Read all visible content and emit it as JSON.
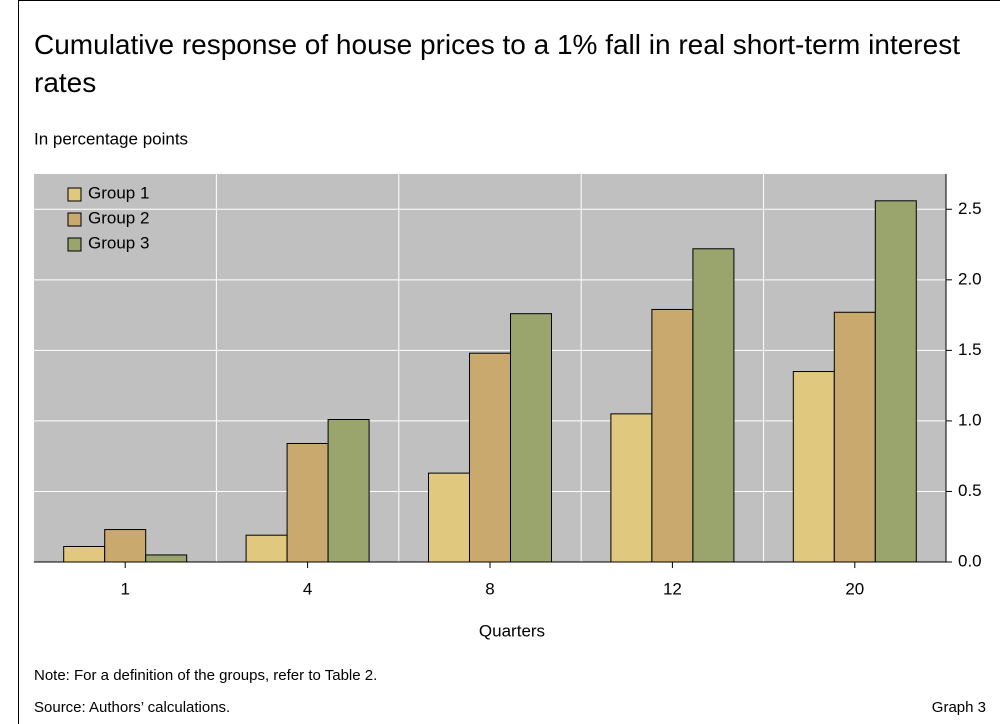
{
  "chart_data": {
    "type": "bar",
    "title": "Cumulative response of house prices to a 1% fall in real short-term interest rates",
    "subtitle": "In percentage points",
    "x_label": "Quarters",
    "categories": [
      "1",
      "4",
      "8",
      "12",
      "20"
    ],
    "series": [
      {
        "name": "Group 1",
        "color": "#e0c97f",
        "values": [
          0.11,
          0.19,
          0.63,
          1.05,
          1.35
        ]
      },
      {
        "name": "Group 2",
        "color": "#c9a96e",
        "values": [
          0.23,
          0.84,
          1.48,
          1.79,
          1.77
        ]
      },
      {
        "name": "Group 3",
        "color": "#9aa56e",
        "values": [
          0.05,
          1.01,
          1.76,
          2.22,
          2.56
        ]
      }
    ],
    "ylim": [
      0,
      2.75
    ],
    "yticks": [
      {
        "value": 0,
        "label": "0.0"
      },
      {
        "value": 0.5,
        "label": "0.5"
      },
      {
        "value": 1,
        "label": "1.0"
      },
      {
        "value": 1.5,
        "label": "1.5"
      },
      {
        "value": 2,
        "label": "2.0"
      },
      {
        "value": 2.5,
        "label": "2.5"
      }
    ],
    "y_axis_side": "right",
    "grid": true,
    "legend": "top-left",
    "note": "Note: For a definition of the groups, refer to Table 2.",
    "source": "Source: Authors’ calculations.",
    "graph_label": "Graph 3"
  }
}
